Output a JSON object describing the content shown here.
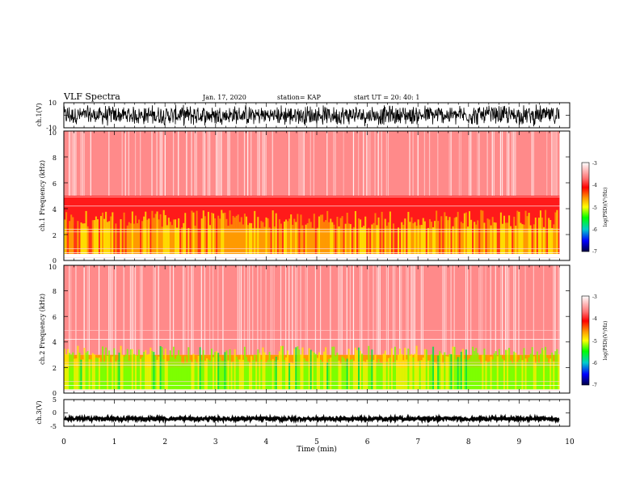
{
  "header": {
    "title": "VLF Spectra",
    "date": "Jan. 17, 2020",
    "station": "station= KAP",
    "start": "start  UT =   20: 40: 1"
  },
  "chart_data": [
    {
      "type": "line",
      "panel": "ch1-waveform",
      "ylabel": "ch.1(V)",
      "ylim": [
        -10,
        10
      ],
      "y_ticks": [
        "10",
        "-10"
      ],
      "xlim": [
        0,
        10
      ],
      "description_values": {
        "envelope_max": 9,
        "envelope_min": -9
      }
    },
    {
      "type": "heatmap",
      "panel": "ch1-spectrogram",
      "ylabel": "ch.1  Frequency  (kHz)",
      "ylim": [
        0,
        10
      ],
      "y_ticks": [
        "0",
        "2",
        "4",
        "6",
        "8",
        "10"
      ],
      "xlim": [
        0,
        9.8
      ],
      "colorbar": {
        "label": "log(PSD)(V²/Hz)",
        "range": [
          -7,
          -3
        ],
        "ticks": [
          "-3",
          "-4",
          "-5",
          "-6",
          "-7"
        ]
      },
      "bands": [
        {
          "f_low": 0.5,
          "f_high": 2.5,
          "level": -4.3
        },
        {
          "f_low": 2.5,
          "f_high": 5.0,
          "level": -3.8
        },
        {
          "f_low": 5.0,
          "f_high": 10.0,
          "level": -3.3
        }
      ]
    },
    {
      "type": "heatmap",
      "panel": "ch2-spectrogram",
      "ylabel": "ch.2  Frequency  (kHz)",
      "ylim": [
        0,
        10
      ],
      "y_ticks": [
        "0",
        "2",
        "4",
        "6",
        "8",
        "10"
      ],
      "xlim": [
        0,
        9.8
      ],
      "colorbar": {
        "label": "log(PSD)(V²/Hz)",
        "range": [
          -7,
          -3
        ],
        "ticks": [
          "-3",
          "-4",
          "-5",
          "-6",
          "-7"
        ]
      },
      "bands": [
        {
          "f_low": 0.3,
          "f_high": 2.0,
          "level": -4.9
        },
        {
          "f_low": 2.0,
          "f_high": 3.0,
          "level": -4.2
        },
        {
          "f_low": 3.0,
          "f_high": 10.0,
          "level": -3.3
        }
      ]
    },
    {
      "type": "line",
      "panel": "ch3-waveform",
      "ylabel": "ch.3(V)",
      "ylim": [
        -5,
        5
      ],
      "y_ticks": [
        "5",
        "0",
        "-5"
      ],
      "xlim": [
        0,
        10
      ],
      "xlabel": "Time  (min)",
      "x_ticks": [
        "0",
        "1",
        "2",
        "3",
        "4",
        "5",
        "6",
        "7",
        "8",
        "9",
        "10"
      ],
      "description_values": {
        "level": -2.2,
        "amplitude": 0.6
      }
    }
  ]
}
